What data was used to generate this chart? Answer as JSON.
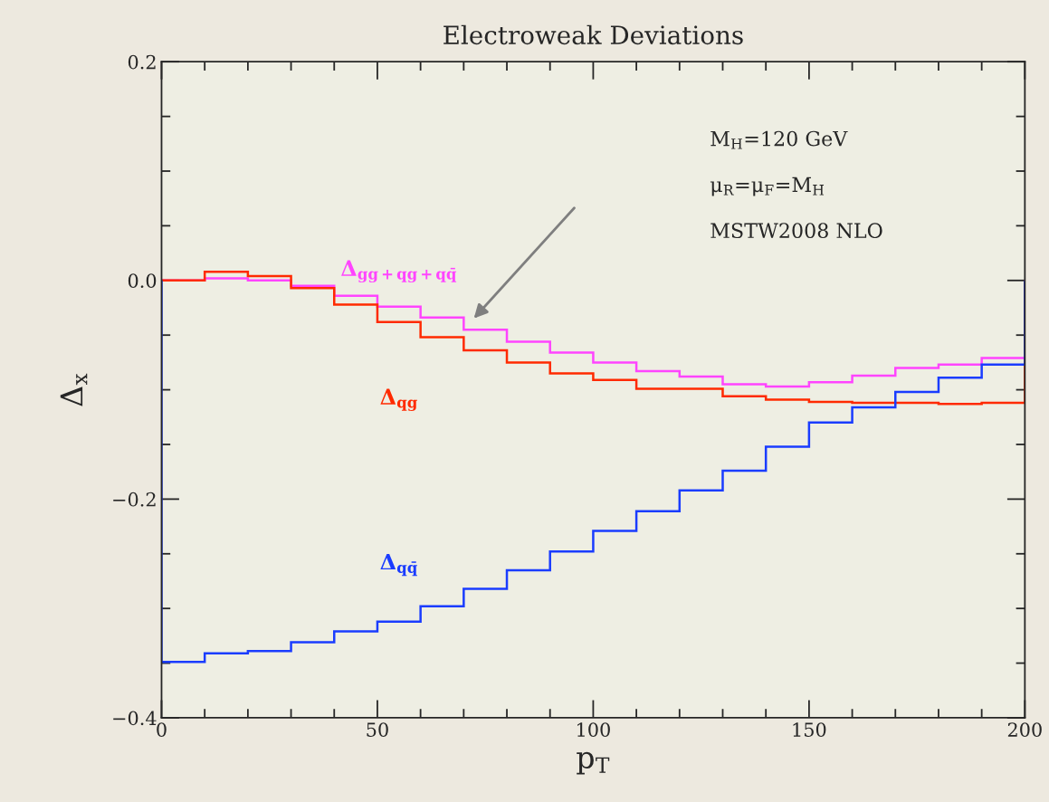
{
  "chart_data": {
    "type": "histogram",
    "title": "Electroweak Deviations",
    "xlabel": "p$_{T}$",
    "ylabel": "Δ$_{x}$",
    "bins": [
      0,
      10,
      20,
      30,
      40,
      50,
      60,
      70,
      80,
      90,
      100,
      110,
      120,
      130,
      140,
      150,
      160,
      170,
      180,
      190,
      200
    ],
    "series": [
      {
        "name": "Δ$_{gg+qg+qq̄}$",
        "color": "#ff44ff",
        "values": [
          0.0,
          0.002,
          0.0,
          -0.005,
          -0.014,
          -0.024,
          -0.034,
          -0.045,
          -0.056,
          -0.066,
          -0.075,
          -0.083,
          -0.088,
          -0.095,
          -0.097,
          -0.093,
          -0.087,
          -0.08,
          -0.077,
          -0.071
        ]
      },
      {
        "name": "Δ$_{qg}$",
        "color": "#ff2a00",
        "values": [
          0.0,
          0.008,
          0.004,
          -0.007,
          -0.022,
          -0.038,
          -0.052,
          -0.064,
          -0.075,
          -0.085,
          -0.091,
          -0.099,
          -0.099,
          -0.106,
          -0.109,
          -0.111,
          -0.112,
          -0.112,
          -0.113,
          -0.112
        ]
      },
      {
        "name": "Δ$_{qq̄}$",
        "color": "#1a3cff",
        "values": [
          -0.349,
          -0.341,
          -0.339,
          -0.331,
          -0.321,
          -0.312,
          -0.298,
          -0.282,
          -0.265,
          -0.248,
          -0.229,
          -0.211,
          -0.192,
          -0.174,
          -0.152,
          -0.13,
          -0.116,
          -0.102,
          -0.089,
          -0.077
        ]
      }
    ],
    "xlim": [
      0,
      200
    ],
    "xticks": [
      0,
      {
        "value": 10,
        "label": null
      },
      {
        "value": 20,
        "label": null
      },
      {
        "value": 30,
        "label": null
      },
      {
        "value": 40,
        "label": null
      },
      50,
      {
        "value": 60,
        "label": null
      },
      {
        "value": 70,
        "label": null
      },
      {
        "value": 80,
        "label": null
      },
      {
        "value": 90,
        "label": null
      },
      100,
      {
        "value": 110,
        "label": null
      },
      {
        "value": 120,
        "label": null
      },
      {
        "value": 130,
        "label": null
      },
      {
        "value": 140,
        "label": null
      },
      150,
      {
        "value": 160,
        "label": null
      },
      {
        "value": 170,
        "label": null
      },
      {
        "value": 180,
        "label": null
      },
      {
        "value": 190,
        "label": null
      },
      200
    ],
    "ylim": [
      -0.4,
      0.2
    ],
    "yticks": [
      {
        "value": -0.4,
        "label": "−0.4"
      },
      {
        "value": -0.35,
        "label": null
      },
      {
        "value": -0.3,
        "label": null
      },
      {
        "value": -0.25,
        "label": null
      },
      {
        "value": -0.2,
        "label": "−0.2"
      },
      {
        "value": -0.15,
        "label": null
      },
      {
        "value": -0.1,
        "label": null
      },
      {
        "value": -0.05,
        "label": null
      },
      {
        "value": 0.0,
        "label": "0.0"
      },
      {
        "value": 0.05,
        "label": null
      },
      {
        "value": 0.1,
        "label": null
      },
      {
        "value": 0.15,
        "label": null
      },
      {
        "value": 0.2,
        "label": "0.2"
      }
    ],
    "annotations": [
      "M$_{H}$=120 GeV",
      "μ$_{R}$=μ$_{F}$=M$_{H}$",
      "MSTW2008 NLO"
    ],
    "grid": false,
    "legend": false
  }
}
